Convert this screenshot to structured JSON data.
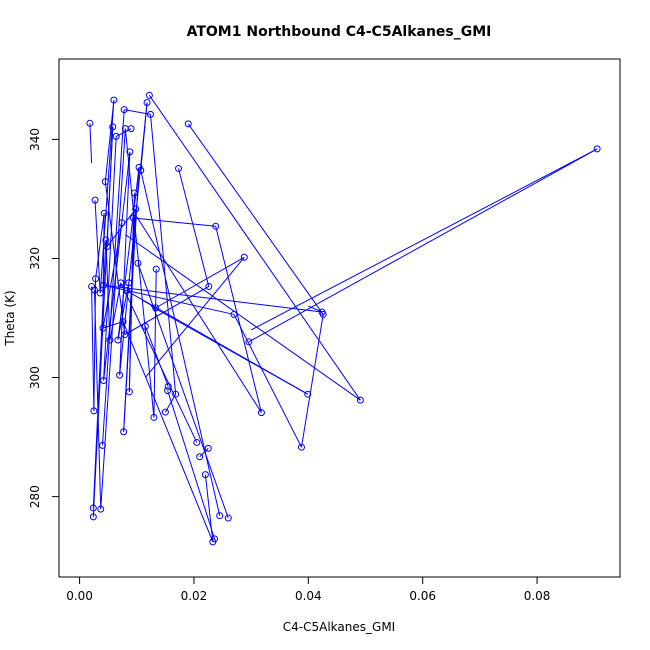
{
  "chart_data": {
    "type": "line",
    "title": "ATOM1 Northbound C4-C5Alkanes_GMI",
    "xlabel": "C4-C5Alkanes_GMI",
    "ylabel": "Theta (K)",
    "xlim": [
      -0.0036,
      0.0945
    ],
    "ylim": [
      266.5,
      353.5
    ],
    "x_ticks": [
      0.0,
      0.02,
      0.04,
      0.06,
      0.08
    ],
    "x_tick_labels": [
      "0.00",
      "0.02",
      "0.04",
      "0.06",
      "0.08"
    ],
    "y_ticks": [
      280,
      300,
      320,
      340
    ],
    "y_tick_labels": [
      "280",
      "300",
      "320",
      "340"
    ],
    "grid": false,
    "legend": "none",
    "series_color": "#0000ff",
    "marker": "open-circle",
    "points": [
      {
        "x": 0.0018,
        "y": 342.7
      },
      {
        "x": 0.0021,
        "y": 315.3
      },
      {
        "x": 0.0024,
        "y": 278.1
      },
      {
        "x": 0.0024,
        "y": 276.6
      },
      {
        "x": 0.0026,
        "y": 314.7
      },
      {
        "x": 0.0028,
        "y": 316.6
      },
      {
        "x": 0.0027,
        "y": 329.8
      },
      {
        "x": 0.0025,
        "y": 294.4
      },
      {
        "x": 0.0036,
        "y": 314.2
      },
      {
        "x": 0.0042,
        "y": 315.5
      },
      {
        "x": 0.0043,
        "y": 327.6
      },
      {
        "x": 0.0046,
        "y": 323.1
      },
      {
        "x": 0.0048,
        "y": 322.0
      },
      {
        "x": 0.0045,
        "y": 332.9
      },
      {
        "x": 0.0041,
        "y": 308.3
      },
      {
        "x": 0.0037,
        "y": 277.9
      },
      {
        "x": 0.004,
        "y": 288.6
      },
      {
        "x": 0.0042,
        "y": 299.5
      },
      {
        "x": 0.0053,
        "y": 306.3
      },
      {
        "x": 0.006,
        "y": 346.6
      },
      {
        "x": 0.0058,
        "y": 342.1
      },
      {
        "x": 0.0064,
        "y": 340.5
      },
      {
        "x": 0.0067,
        "y": 306.3
      },
      {
        "x": 0.007,
        "y": 300.4
      },
      {
        "x": 0.0072,
        "y": 315.9
      },
      {
        "x": 0.0074,
        "y": 326.0
      },
      {
        "x": 0.0076,
        "y": 309.4
      },
      {
        "x": 0.0078,
        "y": 345.0
      },
      {
        "x": 0.008,
        "y": 341.8
      },
      {
        "x": 0.0082,
        "y": 314.6
      },
      {
        "x": 0.0079,
        "y": 307.2
      },
      {
        "x": 0.0077,
        "y": 290.9
      },
      {
        "x": 0.0086,
        "y": 315.9
      },
      {
        "x": 0.0088,
        "y": 337.9
      },
      {
        "x": 0.009,
        "y": 341.8
      },
      {
        "x": 0.0087,
        "y": 297.6
      },
      {
        "x": 0.0094,
        "y": 326.8
      },
      {
        "x": 0.0096,
        "y": 331.0
      },
      {
        "x": 0.0098,
        "y": 328.3
      },
      {
        "x": 0.0102,
        "y": 319.2
      },
      {
        "x": 0.0104,
        "y": 335.3
      },
      {
        "x": 0.0107,
        "y": 334.8
      },
      {
        "x": 0.0115,
        "y": 308.6
      },
      {
        "x": 0.0118,
        "y": 346.2
      },
      {
        "x": 0.0122,
        "y": 347.4
      },
      {
        "x": 0.0124,
        "y": 344.2
      },
      {
        "x": 0.013,
        "y": 293.3
      },
      {
        "x": 0.0134,
        "y": 318.2
      },
      {
        "x": 0.0133,
        "y": 311.7
      },
      {
        "x": 0.015,
        "y": 294.2
      },
      {
        "x": 0.0154,
        "y": 297.8
      },
      {
        "x": 0.0155,
        "y": 298.5
      },
      {
        "x": 0.0168,
        "y": 297.2
      },
      {
        "x": 0.0173,
        "y": 335.1
      },
      {
        "x": 0.019,
        "y": 342.6
      },
      {
        "x": 0.0205,
        "y": 289.1
      },
      {
        "x": 0.021,
        "y": 286.7
      },
      {
        "x": 0.022,
        "y": 283.7
      },
      {
        "x": 0.0225,
        "y": 288.1
      },
      {
        "x": 0.0226,
        "y": 315.3
      },
      {
        "x": 0.0233,
        "y": 272.4
      },
      {
        "x": 0.0236,
        "y": 272.9
      },
      {
        "x": 0.0238,
        "y": 325.4
      },
      {
        "x": 0.0245,
        "y": 276.8
      },
      {
        "x": 0.026,
        "y": 276.4
      },
      {
        "x": 0.027,
        "y": 310.6
      },
      {
        "x": 0.0288,
        "y": 320.2
      },
      {
        "x": 0.0296,
        "y": 306.0
      },
      {
        "x": 0.0318,
        "y": 294.1
      },
      {
        "x": 0.0388,
        "y": 288.3
      },
      {
        "x": 0.0399,
        "y": 297.2
      },
      {
        "x": 0.0424,
        "y": 311.0
      },
      {
        "x": 0.0426,
        "y": 310.6
      },
      {
        "x": 0.0491,
        "y": 296.2
      },
      {
        "x": 0.0905,
        "y": 338.4
      }
    ],
    "line_segments": [
      [
        0.0018,
        342.7,
        0.0021,
        336.0
      ],
      [
        0.0024,
        278.1,
        0.0046,
        323.1
      ],
      [
        0.0024,
        276.6,
        0.0058,
        342.1
      ],
      [
        0.0021,
        315.3,
        0.0025,
        294.4
      ],
      [
        0.0025,
        294.4,
        0.0028,
        316.6
      ],
      [
        0.0026,
        314.7,
        0.0037,
        277.9
      ],
      [
        0.0028,
        316.6,
        0.0043,
        327.6
      ],
      [
        0.0027,
        329.8,
        0.0036,
        314.2
      ],
      [
        0.0036,
        314.2,
        0.006,
        346.6
      ],
      [
        0.0037,
        277.9,
        0.008,
        341.8
      ],
      [
        0.0042,
        315.5,
        0.0424,
        311.0
      ],
      [
        0.0042,
        315.5,
        0.027,
        310.6
      ],
      [
        0.004,
        288.6,
        0.0078,
        345.0
      ],
      [
        0.0042,
        299.5,
        0.0088,
        337.9
      ],
      [
        0.0043,
        327.6,
        0.004,
        307.0
      ],
      [
        0.0045,
        332.9,
        0.0079,
        307.2
      ],
      [
        0.0046,
        323.1,
        0.0053,
        306.3
      ],
      [
        0.0048,
        322.0,
        0.0098,
        328.3
      ],
      [
        0.0041,
        308.3,
        0.0076,
        309.4
      ],
      [
        0.0053,
        306.3,
        0.0072,
        315.9
      ],
      [
        0.0058,
        342.1,
        0.0048,
        322.0
      ],
      [
        0.006,
        346.6,
        0.0045,
        332.9
      ],
      [
        0.0064,
        340.5,
        0.0042,
        299.5
      ],
      [
        0.0067,
        306.3,
        0.0104,
        335.3
      ],
      [
        0.007,
        300.4,
        0.0118,
        346.2
      ],
      [
        0.0072,
        315.9,
        0.0205,
        289.1
      ],
      [
        0.0074,
        326.0,
        0.0041,
        308.3
      ],
      [
        0.0076,
        309.4,
        0.0233,
        272.4
      ],
      [
        0.0078,
        345.0,
        0.0124,
        344.2
      ],
      [
        0.0079,
        307.2,
        0.0226,
        315.3
      ],
      [
        0.008,
        341.8,
        0.013,
        293.3
      ],
      [
        0.0082,
        314.6,
        0.0399,
        297.2
      ],
      [
        0.0086,
        315.9,
        0.0067,
        306.3
      ],
      [
        0.0088,
        337.9,
        0.007,
        300.4
      ],
      [
        0.009,
        341.8,
        0.0064,
        340.5
      ],
      [
        0.0087,
        297.6,
        0.0094,
        326.8
      ],
      [
        0.0094,
        326.8,
        0.0238,
        325.4
      ],
      [
        0.0096,
        331.0,
        0.0087,
        297.6
      ],
      [
        0.0098,
        328.3,
        0.0077,
        290.9
      ],
      [
        0.0102,
        319.2,
        0.026,
        276.4
      ],
      [
        0.0104,
        335.3,
        0.0077,
        290.9
      ],
      [
        0.0107,
        334.8,
        0.0245,
        276.8
      ],
      [
        0.0115,
        308.6,
        0.0155,
        298.5
      ],
      [
        0.0118,
        346.2,
        0.0107,
        334.8
      ],
      [
        0.0122,
        347.4,
        0.0491,
        296.2
      ],
      [
        0.0124,
        344.2,
        0.0168,
        297.2
      ],
      [
        0.013,
        293.3,
        0.0134,
        318.2
      ],
      [
        0.0133,
        311.7,
        0.0288,
        320.2
      ],
      [
        0.0133,
        311.7,
        0.011,
        313.0
      ],
      [
        0.015,
        294.2,
        0.0168,
        297.2
      ],
      [
        0.0154,
        297.8,
        0.0236,
        272.9
      ],
      [
        0.0173,
        335.1,
        0.0226,
        315.3
      ],
      [
        0.019,
        342.6,
        0.0426,
        310.6
      ],
      [
        0.021,
        286.7,
        0.0225,
        288.1
      ],
      [
        0.022,
        283.7,
        0.0233,
        272.4
      ],
      [
        0.0238,
        325.4,
        0.0318,
        294.1
      ],
      [
        0.027,
        310.6,
        0.0388,
        288.3
      ],
      [
        0.0296,
        306.0,
        0.0905,
        338.4
      ],
      [
        0.0388,
        288.3,
        0.0426,
        310.6
      ],
      [
        0.0424,
        311.0,
        0.04,
        312.0
      ],
      [
        0.0318,
        294.1,
        0.01,
        327.0
      ],
      [
        0.0399,
        297.2,
        0.0125,
        312.0
      ],
      [
        0.0288,
        320.2,
        0.0115,
        300.0
      ],
      [
        0.0491,
        296.2,
        0.008,
        324.0
      ],
      [
        0.0905,
        338.4,
        0.03,
        308.0
      ]
    ]
  }
}
